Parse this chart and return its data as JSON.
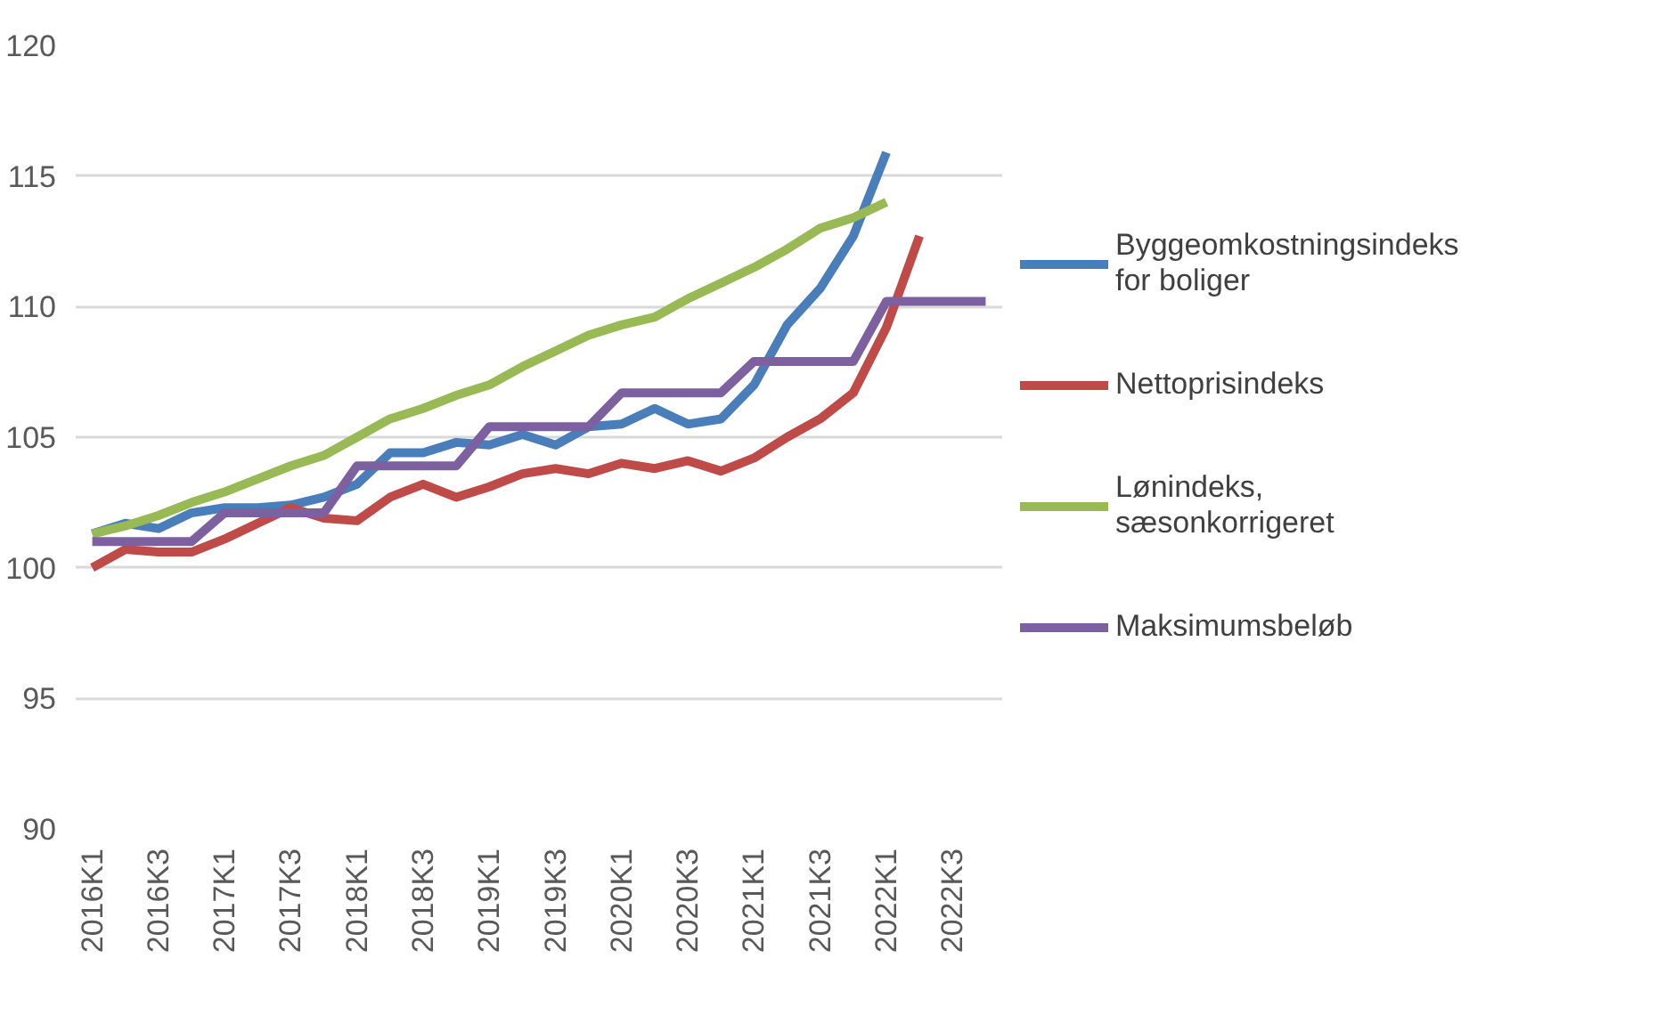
{
  "chart_data": {
    "type": "line",
    "categories": [
      "2016K1",
      null,
      "2016K3",
      null,
      "2017K1",
      null,
      "2017K3",
      null,
      "2018K1",
      null,
      "2018K3",
      null,
      "2019K1",
      null,
      "2019K3",
      null,
      "2020K1",
      null,
      "2020K3",
      null,
      "2021K1",
      null,
      "2021K3",
      null,
      "2022K1",
      null,
      "2022K3",
      null
    ],
    "series": [
      {
        "name": "Byggeomkostningsindeks for boliger",
        "color": "#4a7ebb",
        "values": [
          101.3,
          101.7,
          101.5,
          102.1,
          102.3,
          102.3,
          102.4,
          102.7,
          103.2,
          104.4,
          104.4,
          104.8,
          104.7,
          105.1,
          104.7,
          105.4,
          105.5,
          106.1,
          105.5,
          105.7,
          107.0,
          109.3,
          110.7,
          112.7,
          115.9,
          null,
          null,
          null
        ]
      },
      {
        "name": "Nettoprisindeks",
        "color": "#be4b48",
        "values": [
          100.0,
          100.7,
          100.6,
          100.6,
          101.1,
          101.7,
          102.3,
          101.9,
          101.8,
          102.7,
          103.2,
          102.7,
          103.1,
          103.6,
          103.8,
          103.6,
          104.0,
          103.8,
          104.1,
          103.7,
          104.2,
          105.0,
          105.7,
          106.7,
          109.2,
          112.7,
          null,
          null
        ]
      },
      {
        "name": "Lønindeks, sæsonkorrigeret",
        "color": "#98b954",
        "values": [
          101.3,
          101.6,
          102.0,
          102.5,
          102.9,
          103.4,
          103.9,
          104.3,
          105.0,
          105.7,
          106.1,
          106.6,
          107.0,
          107.7,
          108.3,
          108.9,
          109.3,
          109.6,
          110.3,
          110.9,
          111.5,
          112.2,
          113.0,
          113.4,
          114.0,
          null,
          null,
          null
        ]
      },
      {
        "name": "Maksimumsbeløb",
        "color": "#7d60a0",
        "values": [
          101.0,
          101.0,
          101.0,
          101.0,
          102.1,
          102.1,
          102.1,
          102.1,
          103.9,
          103.9,
          103.9,
          103.9,
          105.4,
          105.4,
          105.4,
          105.4,
          106.7,
          106.7,
          106.7,
          106.7,
          107.9,
          107.9,
          107.9,
          107.9,
          110.2,
          110.2,
          110.2,
          110.2
        ]
      }
    ],
    "ylim": [
      90,
      120
    ],
    "yticks": [
      90,
      95,
      100,
      105,
      110,
      115,
      120
    ],
    "grid": "y",
    "legend": "right",
    "line_style": "solid",
    "marker": "none"
  }
}
